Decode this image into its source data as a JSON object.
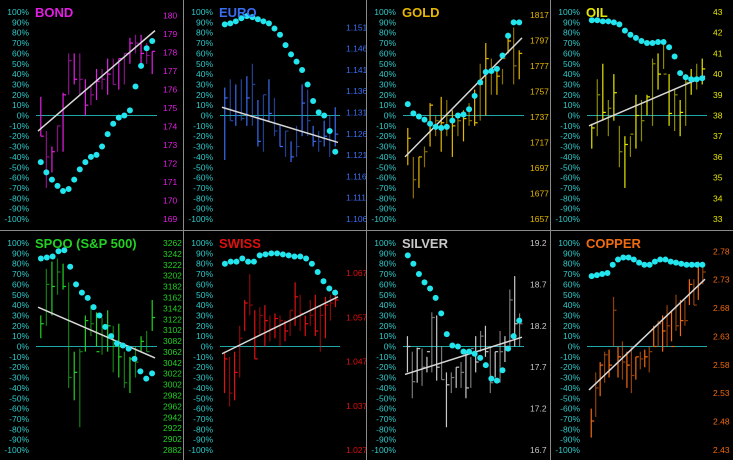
{
  "percent_ticks": [
    "100%",
    "90%",
    "80%",
    "70%",
    "60%",
    "50%",
    "40%",
    "30%",
    "20%",
    "10%",
    "0%",
    "-10%",
    "-20%",
    "-30%",
    "-40%",
    "-50%",
    "-60%",
    "-70%",
    "-80%",
    "-90%",
    "-100%"
  ],
  "colors": {
    "dots": "#22e5ee",
    "trend": "#d8d8d8",
    "zero": "#1fa7a7",
    "divider": "#8a8a8a",
    "background": "#000000",
    "percent_labels": "#2fc9c9"
  },
  "chart_data": [
    {
      "type": "bar",
      "title": "BOND",
      "color": "#e21ee2",
      "ylim_percent": [
        -100,
        100
      ],
      "price_range": [
        169,
        180.2
      ],
      "price_ticks": [
        "180",
        "179",
        "178",
        "177",
        "176",
        "175",
        "174",
        "173",
        "172",
        "171",
        "170",
        "169"
      ],
      "bars": [
        [
          18,
          -20,
          -20
        ],
        [
          -15,
          -70,
          -40
        ],
        [
          -30,
          -55,
          -35
        ],
        [
          -10,
          -35,
          -10
        ],
        [
          22,
          -35,
          20
        ],
        [
          60,
          20,
          53
        ],
        [
          60,
          30,
          35
        ],
        [
          60,
          20,
          35
        ],
        [
          35,
          0,
          10
        ],
        [
          30,
          10,
          20
        ],
        [
          45,
          15,
          33
        ],
        [
          45,
          25,
          35
        ],
        [
          55,
          20,
          40
        ],
        [
          55,
          30,
          30
        ],
        [
          55,
          25,
          55
        ],
        [
          60,
          30,
          60
        ],
        [
          75,
          50,
          70
        ],
        [
          78,
          60,
          70
        ],
        [
          78,
          50,
          60
        ],
        [
          70,
          50,
          58
        ],
        [
          62,
          40,
          62
        ]
      ],
      "dots": [
        -45,
        -55,
        -62,
        -68,
        -73,
        -71,
        -62,
        -52,
        -45,
        -40,
        -38,
        -30,
        -18,
        -8,
        -2,
        0,
        5,
        28,
        48,
        65,
        72
      ],
      "trend": [
        -15,
        82
      ]
    },
    {
      "type": "bar",
      "title": "EURO",
      "color": "#3a6cf0",
      "ylim_percent": [
        -100,
        100
      ],
      "price_range": [
        1.106,
        1.1546
      ],
      "price_ticks": [
        "1.151",
        "1.146",
        "1.141",
        "1.136",
        "1.131",
        "1.126",
        "1.121",
        "1.116",
        "1.111",
        "1.106"
      ],
      "bars": [
        [
          27,
          -43,
          17
        ],
        [
          35,
          -5,
          -5
        ],
        [
          30,
          -10,
          0
        ],
        [
          35,
          -5,
          -3
        ],
        [
          38,
          -10,
          17
        ],
        [
          50,
          -10,
          30
        ],
        [
          15,
          -30,
          -25
        ],
        [
          20,
          -35,
          20
        ],
        [
          35,
          -5,
          2
        ],
        [
          17,
          -20,
          -15
        ],
        [
          -10,
          -30,
          -30
        ],
        [
          -15,
          -40,
          -15
        ],
        [
          -25,
          -45,
          -40
        ],
        [
          -10,
          -40,
          -30
        ],
        [
          30,
          -20,
          12
        ],
        [
          25,
          -20,
          -5
        ],
        [
          -10,
          -30,
          -25
        ],
        [
          -15,
          -35,
          -25
        ],
        [
          -5,
          -30,
          -20
        ],
        [
          0,
          -40,
          -15
        ],
        [
          8,
          -30,
          -18
        ]
      ],
      "dots": [
        88,
        89,
        91,
        94,
        96,
        95,
        93,
        91,
        89,
        84,
        78,
        68,
        59,
        52,
        44,
        30,
        14,
        3,
        0,
        -15,
        -35
      ],
      "trend": [
        8,
        -26
      ]
    },
    {
      "type": "bar",
      "title": "GOLD",
      "color": "#e6b800",
      "ylim_percent": [
        -100,
        100
      ],
      "price_range": [
        1657,
        1819.4
      ],
      "price_ticks": [
        "1817",
        "1797",
        "1777",
        "1757",
        "1737",
        "1717",
        "1697",
        "1677",
        "1657"
      ],
      "bars": [
        [
          -12,
          -48,
          -22
        ],
        [
          -40,
          -80,
          -62
        ],
        [
          -40,
          -70,
          -40
        ],
        [
          -30,
          -50,
          -35
        ],
        [
          12,
          -30,
          10
        ],
        [
          0,
          -20,
          -5
        ],
        [
          18,
          -35,
          -7
        ],
        [
          15,
          -20,
          0
        ],
        [
          5,
          -40,
          -10
        ],
        [
          0,
          -20,
          -5
        ],
        [
          5,
          -25,
          -3
        ],
        [
          12,
          -10,
          -5
        ],
        [
          25,
          -10,
          -7
        ],
        [
          50,
          -5,
          30
        ],
        [
          70,
          0,
          55
        ],
        [
          55,
          20,
          42
        ],
        [
          45,
          20,
          38
        ],
        [
          45,
          30,
          55
        ],
        [
          80,
          60,
          72
        ],
        [
          85,
          30,
          48
        ],
        [
          63,
          35,
          60
        ]
      ],
      "dots": [
        11,
        2,
        -1,
        -4,
        -8,
        -11,
        -12,
        -11,
        -5,
        0,
        1,
        6,
        19,
        32,
        42,
        43,
        45,
        58,
        77,
        90,
        90
      ],
      "trend": [
        -40,
        75
      ]
    },
    {
      "type": "bar",
      "title": "OIL",
      "color": "#e6e600",
      "ylim_percent": [
        -100,
        100
      ],
      "price_range": [
        33,
        43
      ],
      "price_ticks": [
        "43",
        "42",
        "41",
        "40",
        "39",
        "38",
        "37",
        "36",
        "35",
        "34",
        "33"
      ],
      "bars": [
        [
          -8,
          -32,
          -12
        ],
        [
          35,
          -20,
          20
        ],
        [
          50,
          -5,
          3
        ],
        [
          15,
          -20,
          7
        ],
        [
          40,
          -5,
          22
        ],
        [
          -10,
          -50,
          -35
        ],
        [
          -20,
          -70,
          -28
        ],
        [
          -20,
          -40,
          -18
        ],
        [
          20,
          -32,
          0
        ],
        [
          15,
          -25,
          -5
        ],
        [
          20,
          0,
          18
        ],
        [
          55,
          -10,
          50
        ],
        [
          60,
          25,
          40
        ],
        [
          70,
          45,
          40
        ],
        [
          40,
          -10,
          2
        ],
        [
          25,
          -15,
          20
        ],
        [
          15,
          -20,
          3
        ],
        [
          40,
          -10,
          32
        ],
        [
          45,
          20,
          35
        ],
        [
          50,
          25,
          35
        ],
        [
          55,
          30,
          45
        ]
      ],
      "dots": [
        92,
        92,
        91,
        91,
        90,
        88,
        82,
        78,
        75,
        72,
        70,
        70,
        71,
        71,
        66,
        57,
        41,
        37,
        35,
        35,
        36
      ],
      "trend": [
        -10,
        38
      ]
    },
    {
      "type": "bar",
      "title": "SPOO (S&P 500)",
      "color": "#22d022",
      "ylim_percent": [
        -100,
        100
      ],
      "price_range": [
        2882,
        3262
      ],
      "price_ticks": [
        "3262",
        "3242",
        "3222",
        "3202",
        "3182",
        "3162",
        "3142",
        "3122",
        "3102",
        "3082",
        "3062",
        "3042",
        "3022",
        "3002",
        "2982",
        "2962",
        "2942",
        "2922",
        "2902",
        "2882"
      ],
      "bars": [
        [
          30,
          8,
          22
        ],
        [
          75,
          20,
          60
        ],
        [
          82,
          30,
          58
        ],
        [
          85,
          50,
          72
        ],
        [
          80,
          55,
          58
        ],
        [
          62,
          -40,
          -30
        ],
        [
          -5,
          -52,
          -25
        ],
        [
          -2,
          -78,
          -5
        ],
        [
          30,
          -5,
          25
        ],
        [
          40,
          10,
          22
        ],
        [
          33,
          0,
          -5
        ],
        [
          28,
          -8,
          20
        ],
        [
          35,
          -5,
          20
        ],
        [
          20,
          -25,
          0
        ],
        [
          22,
          -30,
          -10
        ],
        [
          -5,
          -40,
          -35
        ],
        [
          -10,
          -45,
          -12
        ],
        [
          0,
          -30,
          -15
        ],
        [
          10,
          -5,
          5
        ],
        [
          15,
          -5,
          -5
        ],
        [
          45,
          15,
          28
        ]
      ],
      "dots": [
        85,
        86,
        87,
        92,
        93,
        77,
        60,
        52,
        47,
        38,
        30,
        19,
        10,
        3,
        1,
        -2,
        -12,
        -24,
        -31,
        -26
      ],
      "trend": [
        38,
        -11
      ]
    },
    {
      "type": "bar",
      "title": "SWISS",
      "color": "#e01010",
      "ylim_percent": [
        -100,
        100
      ],
      "price_range": [
        1.027,
        1.0738
      ],
      "price_ticks": [
        "1.067",
        "1.057",
        "1.047",
        "1.037",
        "1.027"
      ],
      "bars": [
        [
          -5,
          -45,
          -12
        ],
        [
          -10,
          -58,
          -45
        ],
        [
          -5,
          -52,
          -25
        ],
        [
          20,
          -30,
          8
        ],
        [
          45,
          15,
          42
        ],
        [
          70,
          30,
          40
        ],
        [
          35,
          -12,
          -12
        ],
        [
          38,
          10,
          30
        ],
        [
          40,
          0,
          25
        ],
        [
          30,
          5,
          17
        ],
        [
          32,
          8,
          27
        ],
        [
          30,
          0,
          25
        ],
        [
          25,
          5,
          15
        ],
        [
          35,
          10,
          35
        ],
        [
          62,
          20,
          48
        ],
        [
          50,
          15,
          32
        ],
        [
          30,
          10,
          22
        ],
        [
          45,
          20,
          30
        ],
        [
          50,
          10,
          15
        ],
        [
          40,
          -5,
          30
        ],
        [
          48,
          8,
          40
        ],
        [
          50,
          25,
          42
        ],
        [
          55,
          38,
          45
        ]
      ],
      "dots": [
        80,
        82,
        82,
        85,
        82,
        82,
        88,
        89,
        90,
        90,
        89,
        88,
        87,
        87,
        85,
        80,
        72,
        63,
        56,
        52
      ],
      "trend": [
        -7,
        48
      ]
    },
    {
      "type": "bar",
      "title": "SILVER",
      "color": "#c8c8c8",
      "ylim_percent": [
        -100,
        100
      ],
      "price_range": [
        16.7,
        19.2
      ],
      "price_ticks": [
        "19.2",
        "18.7",
        "18.2",
        "17.7",
        "17.2",
        "16.7"
      ],
      "bars": [
        [
          10,
          -25,
          0
        ],
        [
          -5,
          -50,
          -34
        ],
        [
          -1,
          -35,
          -2
        ],
        [
          -2,
          -38,
          -20
        ],
        [
          -10,
          -25,
          -5
        ],
        [
          33,
          -25,
          28
        ],
        [
          30,
          -33,
          -20
        ],
        [
          0,
          -32,
          -32
        ],
        [
          -25,
          -78,
          -37
        ],
        [
          -25,
          -45,
          -30
        ],
        [
          -20,
          -40,
          -20
        ],
        [
          -15,
          -40,
          -25
        ],
        [
          -5,
          -50,
          -40
        ],
        [
          -10,
          -40,
          -2
        ],
        [
          10,
          -25,
          -15
        ],
        [
          15,
          -5,
          10
        ],
        [
          20,
          -10,
          -5
        ],
        [
          0,
          -45,
          -35
        ],
        [
          -5,
          -30,
          -5
        ],
        [
          15,
          -35,
          -5
        ],
        [
          10,
          -15,
          0
        ],
        [
          55,
          0,
          45
        ],
        [
          68,
          0,
          22
        ],
        [
          32,
          0,
          22
        ]
      ],
      "dots": [
        88,
        80,
        70,
        62,
        56,
        47,
        32,
        12,
        1,
        0,
        -5,
        -5,
        -7,
        -11,
        -18,
        -31,
        -33,
        -23,
        -2,
        10,
        25
      ],
      "trend": [
        -27,
        9
      ]
    },
    {
      "type": "bar",
      "title": "COPPER",
      "color": "#f06a10",
      "ylim_percent": [
        -100,
        100
      ],
      "price_range": [
        2.43,
        2.7946
      ],
      "price_ticks": [
        "2.78",
        "2.73",
        "2.68",
        "2.63",
        "2.58",
        "2.53",
        "2.48",
        "2.43"
      ],
      "bars": [
        [
          -60,
          -88,
          -72
        ],
        [
          -25,
          -68,
          -40
        ],
        [
          -15,
          -48,
          -18
        ],
        [
          -5,
          -35,
          -8
        ],
        [
          -3,
          -30,
          -18
        ],
        [
          48,
          0,
          35
        ],
        [
          0,
          -30,
          -10
        ],
        [
          5,
          -32,
          -15
        ],
        [
          -5,
          -40,
          -18
        ],
        [
          0,
          -45,
          -28
        ],
        [
          -10,
          -32,
          -10
        ],
        [
          -5,
          -22,
          -12
        ],
        [
          -3,
          -20,
          -10
        ],
        [
          0,
          -25,
          -5
        ],
        [
          20,
          0,
          0
        ],
        [
          25,
          0,
          22
        ],
        [
          30,
          -5,
          15
        ],
        [
          40,
          0,
          20
        ],
        [
          35,
          5,
          0
        ],
        [
          50,
          15,
          20
        ],
        [
          45,
          10,
          25
        ],
        [
          45,
          20,
          25
        ],
        [
          65,
          40,
          60
        ],
        [
          65,
          40,
          40
        ],
        [
          82,
          45,
          80
        ],
        [
          82,
          60,
          72
        ]
      ],
      "dots": [
        68,
        69,
        70,
        71,
        79,
        84,
        86,
        86,
        84,
        81,
        79,
        79,
        82,
        84,
        84,
        82,
        81,
        80,
        79,
        79,
        79,
        79
      ],
      "trend": [
        -42,
        65
      ]
    }
  ]
}
